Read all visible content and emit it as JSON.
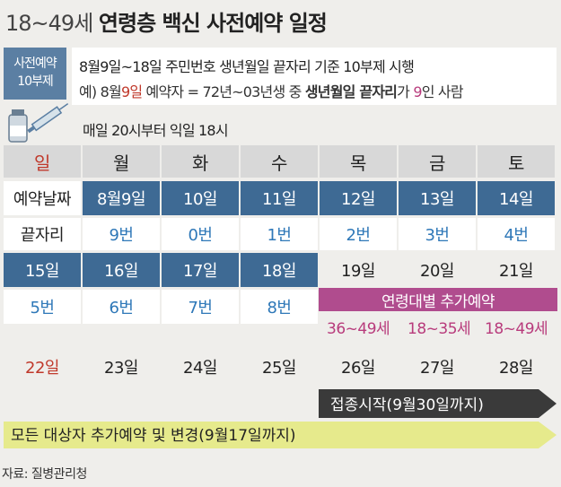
{
  "title": {
    "light": "18~49세",
    "bold": "연령층 백신 사전예약 일정"
  },
  "badge": {
    "line1": "사전예약",
    "line2": "10부제"
  },
  "info": {
    "line1": "8월9일~18일 주민번호 생년월일 끝자리 기준 10부제 시행",
    "line2_a": "예) 8월",
    "line2_b": "9일",
    "line2_c": " 예약자 = 72년~03년생 중 ",
    "line2_d": "생년월일 끝자리",
    "line2_e": "가 ",
    "line2_f": "9",
    "line2_g": "인 사람"
  },
  "daily_note": "매일 20시부터 익일 18시",
  "weekdays": [
    "일",
    "월",
    "화",
    "수",
    "목",
    "금",
    "토"
  ],
  "row_labels": {
    "date": "예약날짜",
    "digit": "끝자리"
  },
  "week1_dates": [
    "8월9일",
    "10일",
    "11일",
    "12일",
    "13일",
    "14일"
  ],
  "week1_digits": [
    "9번",
    "0번",
    "1번",
    "2번",
    "3번",
    "4번"
  ],
  "week2_dates": [
    "15일",
    "16일",
    "17일",
    "18일",
    "19일",
    "20일",
    "21일"
  ],
  "week2_digits": [
    "5번",
    "6번",
    "7번",
    "8번"
  ],
  "extra_booking": {
    "label": "연령대별 추가예약",
    "ages": [
      "36~49세",
      "18~35세",
      "18~49세"
    ]
  },
  "week3_dates": [
    "22일",
    "23일",
    "24일",
    "25일",
    "26일",
    "27일",
    "28일"
  ],
  "arrow_vaccination": "접종시작(9월30일까지)",
  "arrow_all": "모든 대상자 추가예약 및 변경(9월17일까지)",
  "source": "자료: 질병관리청"
}
